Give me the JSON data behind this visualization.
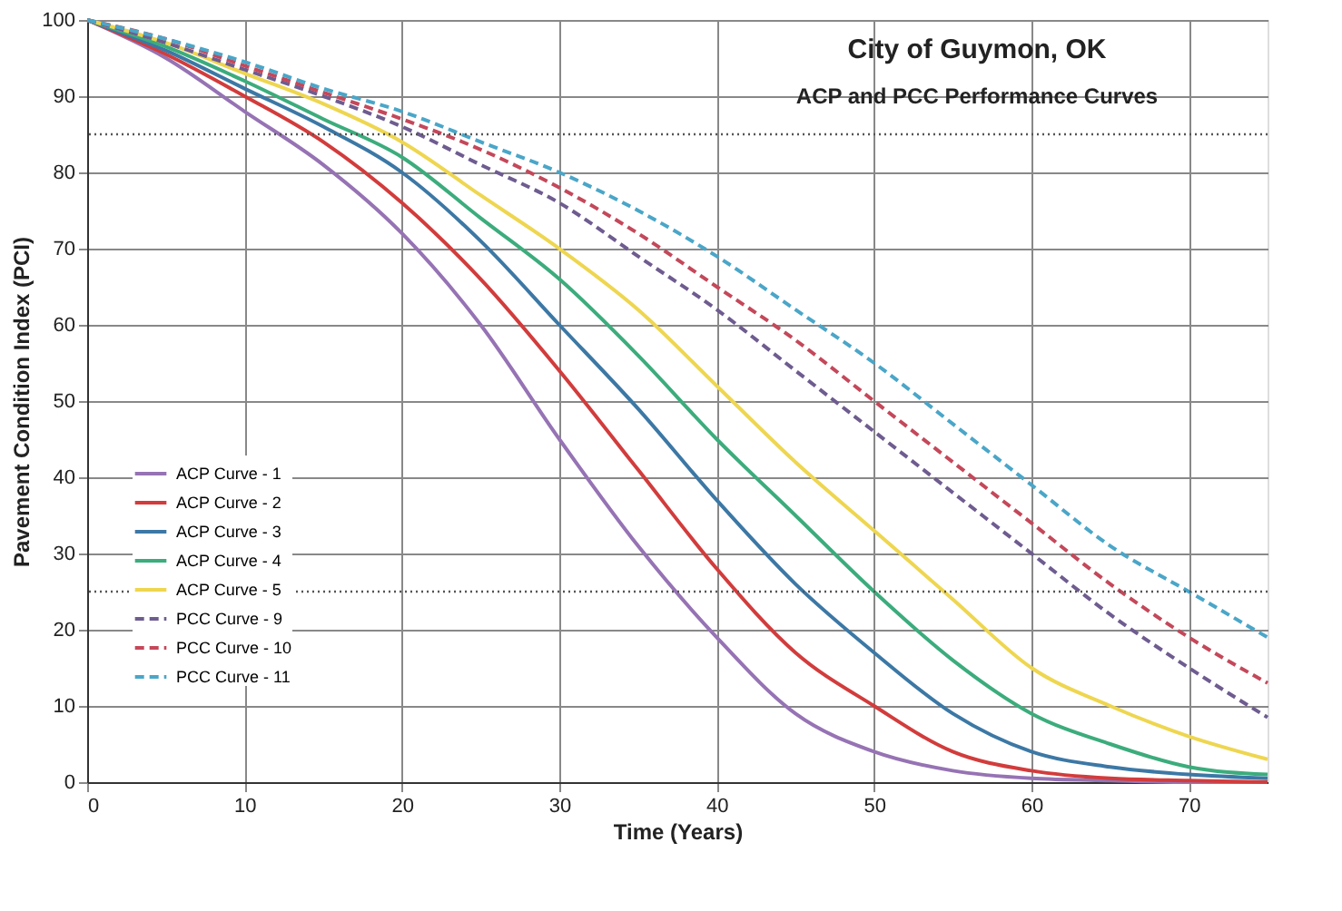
{
  "chart_data": {
    "type": "line",
    "title": "City of Guymon, OK",
    "subtitle": "ACP and PCC Performance Curves",
    "xlabel": "Time (Years)",
    "ylabel": "Pavement Condition Index (PCI)",
    "x": [
      0,
      5,
      10,
      15,
      20,
      25,
      30,
      35,
      40,
      45,
      50,
      55,
      60,
      65,
      70,
      75
    ],
    "xlim": [
      0,
      75
    ],
    "xticks": [
      0,
      10,
      20,
      30,
      40,
      50,
      60,
      70
    ],
    "ylim": [
      0,
      100
    ],
    "yticks": [
      0,
      10,
      20,
      30,
      40,
      50,
      60,
      70,
      80,
      90,
      100
    ],
    "grid": true,
    "legend": "left",
    "marker": "none",
    "series": [
      {
        "name": "ACP Curve - 1",
        "color": "#9673b4",
        "line_style": "solid",
        "values": [
          100,
          95,
          88,
          81,
          72,
          60,
          45,
          31,
          19,
          9,
          4,
          1.5,
          0.5,
          0.2,
          0,
          0
        ]
      },
      {
        "name": "ACP Curve - 2",
        "color": "#d23c3c",
        "line_style": "solid",
        "values": [
          100,
          95.5,
          90,
          84,
          76,
          66,
          54,
          41,
          28,
          17,
          10,
          4,
          1.5,
          0.5,
          0.2,
          0
        ]
      },
      {
        "name": "ACP Curve - 3",
        "color": "#3c78a5",
        "line_style": "solid",
        "values": [
          100,
          96,
          91,
          86,
          80,
          71,
          60,
          49,
          37,
          26,
          17,
          9,
          4,
          2,
          1,
          0.5
        ]
      },
      {
        "name": "ACP Curve - 4",
        "color": "#3cac7c",
        "line_style": "solid",
        "values": [
          100,
          96.5,
          92,
          87,
          82,
          74,
          66,
          56,
          45,
          35,
          25,
          16,
          9,
          5,
          2,
          1
        ]
      },
      {
        "name": "ACP Curve - 5",
        "color": "#eed650",
        "line_style": "solid",
        "values": [
          100,
          97,
          93,
          89,
          84,
          77,
          70,
          62,
          52,
          42,
          33,
          24,
          15,
          10,
          6,
          3
        ]
      },
      {
        "name": "PCC Curve - 9",
        "color": "#6e5c90",
        "line_style": "dashed",
        "values": [
          100,
          97,
          93.5,
          90,
          86,
          81,
          76,
          69,
          62,
          54,
          46,
          38,
          30,
          22,
          15,
          8.5
        ]
      },
      {
        "name": "PCC Curve - 10",
        "color": "#c4485a",
        "line_style": "dashed",
        "values": [
          100,
          97.5,
          94,
          90.5,
          87,
          83,
          78,
          72,
          65,
          58,
          50,
          42,
          34,
          26,
          19,
          13
        ]
      },
      {
        "name": "PCC Curve - 11",
        "color": "#4aa6c8",
        "line_style": "dashed",
        "values": [
          100,
          97.5,
          94.5,
          91,
          88,
          84,
          80,
          75,
          69,
          62,
          55,
          47,
          39,
          31,
          25,
          19
        ]
      }
    ],
    "ref_lines": [
      {
        "axis": "y",
        "value": 85,
        "color": "#555555",
        "line_style": "dotted"
      },
      {
        "axis": "y",
        "value": 25,
        "color": "#555555",
        "line_style": "dotted"
      }
    ]
  }
}
